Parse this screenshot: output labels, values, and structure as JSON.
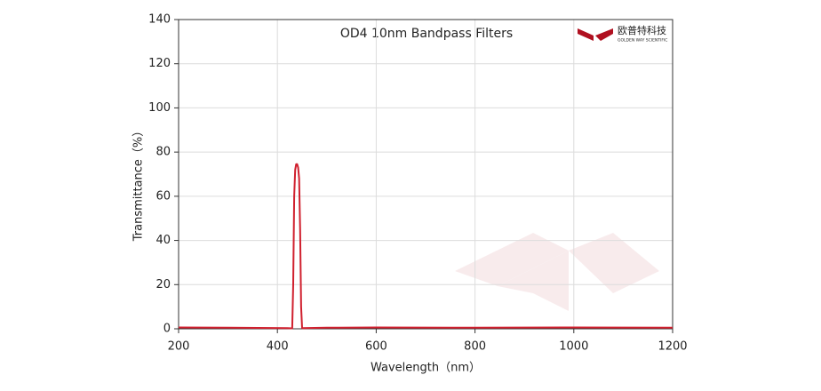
{
  "chart_data": {
    "type": "line",
    "title": "OD4 10nm Bandpass Filters",
    "x_label": "Wavelength（nm）",
    "y_label": "Transmittance（%）",
    "logo": {
      "name": "欧普特科技",
      "subtitle": "GOLDEN WAY SCIENTIFIC"
    },
    "x": [
      200,
      300,
      420,
      430,
      432,
      434,
      436,
      438,
      440,
      442,
      444,
      446,
      448,
      450,
      500,
      600,
      800,
      1000,
      1200
    ],
    "series": [
      {
        "name": "OD4 10nm Bandpass Filter",
        "color": "#d0202e",
        "values": [
          0.6,
          0.5,
          0.3,
          0.2,
          20,
          60,
          72,
          74.5,
          74.5,
          73,
          68,
          45,
          10,
          0.3,
          0.5,
          0.6,
          0.5,
          0.6,
          0.5
        ]
      }
    ],
    "xlim": [
      200,
      1200
    ],
    "xticks": [
      200,
      400,
      600,
      800,
      1000,
      1200
    ],
    "ylim": [
      0,
      140
    ],
    "yticks": [
      0,
      20,
      40,
      60,
      80,
      100,
      120,
      140
    ],
    "grid": true
  }
}
